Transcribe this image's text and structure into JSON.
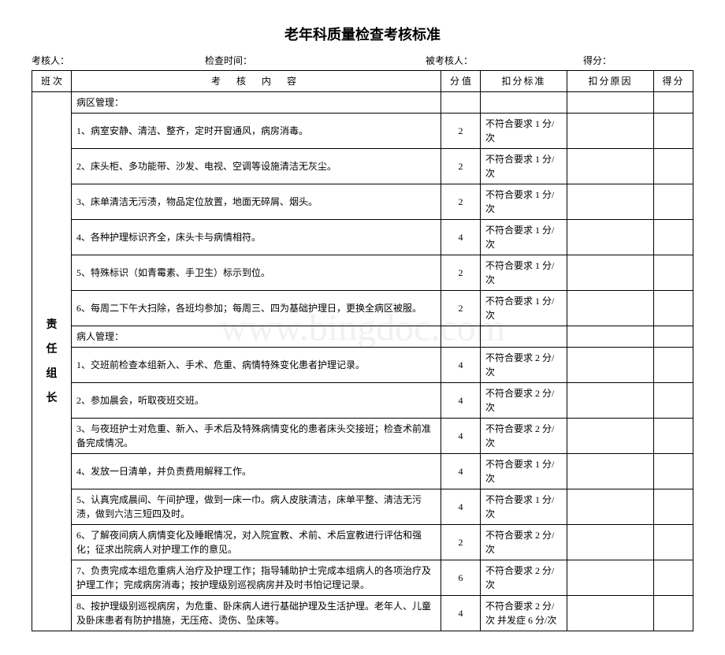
{
  "title": "老年科质量检查考核标准",
  "header": {
    "assessor_label": "考核人：",
    "time_label": "检查时间：",
    "assessee_label": "被考核人：",
    "score_label": "得分："
  },
  "columns": {
    "shift": "班 次",
    "content": "考核内容",
    "score": "分 值",
    "deduct": "扣分标准",
    "reason": "扣分原因",
    "points": "得分"
  },
  "shift_label": [
    "责",
    "任",
    "组",
    "长"
  ],
  "sections": {
    "ward_mgmt": "病区管理：",
    "patient_mgmt": "病人管理："
  },
  "rows": [
    {
      "content": "1、病室安静、清洁、整齐，定时开窗通风，病房消毒。",
      "score": "2",
      "deduct": "不符合要求 1 分/次"
    },
    {
      "content": "2、床头柜、多功能带、沙发、电视、空调等设施清洁无灰尘。",
      "score": "2",
      "deduct": "不符合要求 1 分/次"
    },
    {
      "content": "3、床单清洁无污渍，物品定位放置，地面无碎屑、烟头。",
      "score": "2",
      "deduct": "不符合要求 1 分/次"
    },
    {
      "content": "4、各种护理标识齐全，床头卡与病情相符。",
      "score": "4",
      "deduct": "不符合要求 1 分/次"
    },
    {
      "content": "5、特殊标识（如青霉素、手卫生）标示到位。",
      "score": "2",
      "deduct": "不符合要求 1 分/次"
    },
    {
      "content": "6、每周二下午大扫除，各班均参加；每周三、四为基础护理日，更换全病区被服。",
      "score": "2",
      "deduct": "不符合要求 1 分/次"
    },
    {
      "content": "1、交班前检查本组新入、手术、危重、病情特殊变化患者护理记录。",
      "score": "4",
      "deduct": "不符合要求 2 分/次"
    },
    {
      "content": "2、参加晨会，听取夜班交班。",
      "score": "4",
      "deduct": "不符合要求 2 分/次"
    },
    {
      "content": "3、与夜班护士对危重、新入、手术后及特殊病情变化的患者床头交接班；检查术前准备完成情况。",
      "score": "4",
      "deduct": "不符合要求 2 分/次"
    },
    {
      "content": "4、发放一日清单，并负责费用解释工作。",
      "score": "4",
      "deduct": "不符合要求 1 分/次"
    },
    {
      "content": "5、认真完成晨间、午间护理，做到一床一巾。病人皮肤清洁，床单平整、清洁无污渍，做到六洁三短四及时。",
      "score": "4",
      "deduct": "不符合要求 1 分/次"
    },
    {
      "content": "6、了解夜间病人病情变化及睡眠情况，对入院宣教、术前、术后宣教进行评估和强化；征求出院病人对护理工作的意见。",
      "score": "2",
      "deduct": "不符合要求 2 分/次"
    },
    {
      "content": "7、负责完成本组危重病人治疗及护理工作；指导辅助护士完成本组病人的各项治疗及护理工作；完成病房消毒；按护理级别巡视病房并及时书怕记理记录。",
      "score": "6",
      "deduct": "不符合要求 2 分/次"
    },
    {
      "content": "8、按护理级别巡视病房，为危重、卧床病人进行基础护理及生活护理。老年人、儿童及卧床患者有防护措施，无压疮、烫伤、坠床等。",
      "score": "4",
      "deduct": "不符合要求 2 分/次 并发症 6 分/次"
    }
  ]
}
